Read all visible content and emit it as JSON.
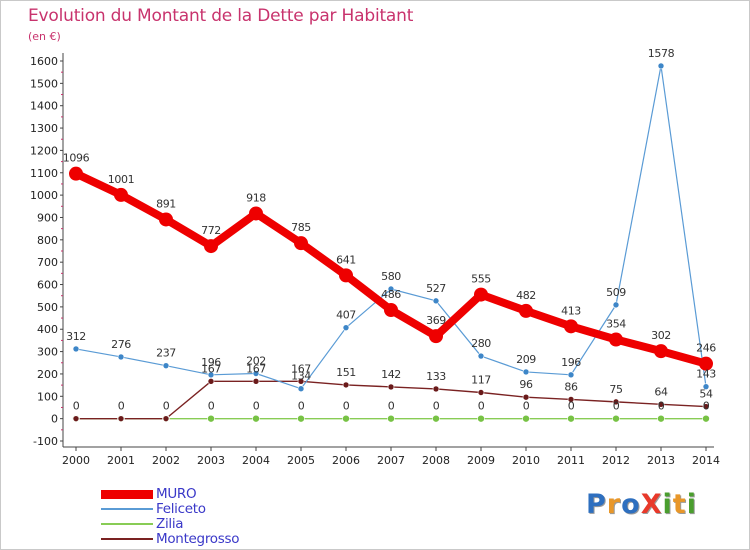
{
  "title": "Evolution du Montant de la Dette par Habitant",
  "subtitle": "(en €)",
  "logo": {
    "text": "ProXiti",
    "letter_colors": [
      "#2e6fbf",
      "#e8972a",
      "#2e6fbf",
      "#e8392a",
      "#4a9e2e",
      "#e8972a",
      "#4a9e2e"
    ]
  },
  "chart_data": {
    "type": "line",
    "title": "Evolution du Montant de la Dette par Habitant",
    "subtitle": "(en €)",
    "xlabel": "",
    "ylabel": "",
    "x": [
      "2000",
      "2001",
      "2002",
      "2003",
      "2004",
      "2005",
      "2006",
      "2007",
      "2008",
      "2009",
      "2010",
      "2011",
      "2012",
      "2013",
      "2014"
    ],
    "ylim": [
      -100,
      1600
    ],
    "yticks": [
      -100,
      0,
      100,
      200,
      300,
      400,
      500,
      600,
      700,
      800,
      900,
      1000,
      1100,
      1200,
      1300,
      1400,
      1500,
      1600
    ],
    "grid": false,
    "legend_position": "bottom-left",
    "series": [
      {
        "name": "MURO",
        "color": "#ee0000",
        "point_color": "#ee0000",
        "values": [
          1096,
          1001,
          891,
          772,
          918,
          785,
          641,
          486,
          369,
          555,
          482,
          413,
          354,
          302,
          246
        ],
        "labels_visible": [
          true,
          true,
          true,
          true,
          true,
          true,
          true,
          true,
          true,
          true,
          true,
          true,
          true,
          true,
          true
        ]
      },
      {
        "name": "Feliceto",
        "color": "#5a9bd5",
        "point_color": "#3d86c8",
        "values": [
          312,
          276,
          237,
          196,
          202,
          134,
          407,
          580,
          527,
          280,
          209,
          196,
          509,
          1578,
          143
        ],
        "labels_visible": [
          true,
          true,
          true,
          true,
          true,
          true,
          true,
          true,
          true,
          true,
          true,
          true,
          true,
          true,
          true
        ]
      },
      {
        "name": "Zilia",
        "color": "#88cc55",
        "point_color": "#77c244",
        "values": [
          0,
          0,
          0,
          0,
          0,
          0,
          0,
          0,
          0,
          0,
          0,
          0,
          0,
          0,
          0
        ],
        "labels_visible": [
          false,
          false,
          false,
          true,
          true,
          true,
          true,
          true,
          true,
          true,
          true,
          true,
          true,
          true,
          true
        ]
      },
      {
        "name": "Montegrosso",
        "color": "#7a2222",
        "point_color": "#6a1a1a",
        "values": [
          0,
          0,
          0,
          167,
          167,
          167,
          151,
          142,
          133,
          117,
          96,
          86,
          75,
          64,
          54
        ],
        "labels_visible": [
          true,
          true,
          true,
          true,
          true,
          true,
          true,
          true,
          true,
          true,
          true,
          true,
          true,
          true,
          true
        ]
      }
    ]
  }
}
